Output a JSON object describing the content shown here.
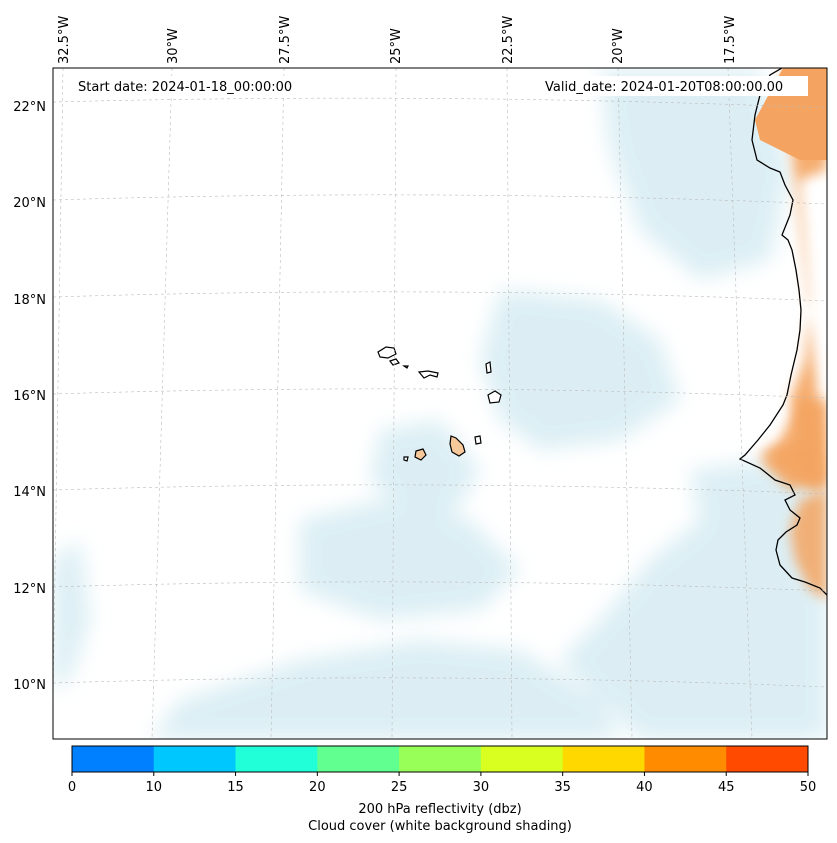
{
  "map": {
    "start_date": "Start date: 2024-01-18_00:00:00",
    "valid_date": "Valid_date: 2024-01-20T08:00:00.00",
    "lon_labels": [
      "32.5°W",
      "30°W",
      "27.5°W",
      "25°W",
      "22.5°W",
      "20°W",
      "17.5°W"
    ],
    "lat_labels": [
      "22°N",
      "20°N",
      "18°N",
      "16°N",
      "14°N",
      "12°N",
      "10°N"
    ],
    "land_color": "#f4a460",
    "island_color": "#f7c89a",
    "cloud_color": "#d6ecf3"
  },
  "colorbar": {
    "ticks": [
      "0",
      "10",
      "15",
      "20",
      "25",
      "30",
      "35",
      "40",
      "45",
      "50"
    ],
    "colors": [
      "#0080ff",
      "#00c8ff",
      "#20ffd8",
      "#60ff90",
      "#98ff58",
      "#d8ff20",
      "#ffd800",
      "#ff8c00",
      "#ff4a00"
    ],
    "label_line1": "200 hPa reflectivity (dbz)",
    "label_line2": "Cloud cover (white background shading)"
  }
}
